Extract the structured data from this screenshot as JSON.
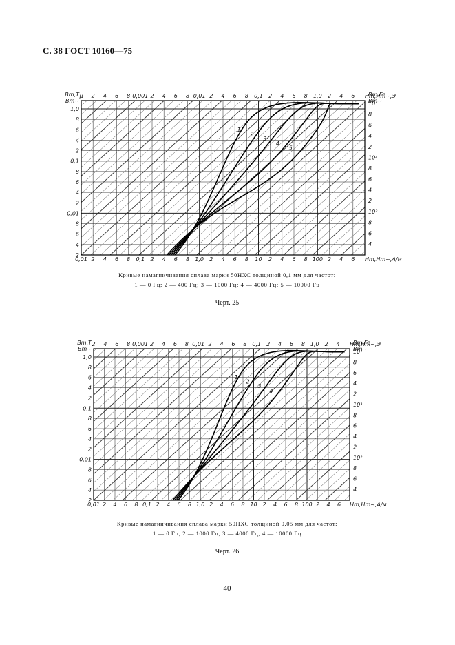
{
  "header": "С. 38 ГОСТ 10160—75",
  "figures": [
    {
      "top_axis": [
        "μ",
        "2",
        "4",
        "6",
        "8",
        "0,001",
        "2",
        "4",
        "6",
        "8",
        "0,01",
        "2",
        "4",
        "6",
        "8",
        "0,1",
        "2",
        "4",
        "6",
        "8",
        "1,0",
        "2",
        "4",
        "6",
        "Hm,Hm~,Э"
      ],
      "bottom_axis": [
        "0,01",
        "2",
        "4",
        "6",
        "8",
        "0,1",
        "2",
        "4",
        "6",
        "8",
        "1,0",
        "2",
        "4",
        "6",
        "8",
        "10",
        "2",
        "4",
        "6",
        "8",
        "100",
        "2",
        "4",
        "6",
        "Hm,Hm~,А/м"
      ],
      "left_axis": [
        "Bm,Т",
        "Bm~",
        "1,0",
        "8",
        "6",
        "4",
        "2",
        "0,1",
        "8",
        "6",
        "4",
        "2",
        "0,01",
        "8",
        "6",
        "4",
        "2"
      ],
      "right_axis": [
        "Bm,Гс",
        "Bm~",
        "10⁴",
        "8",
        "6",
        "4",
        "2",
        "10³",
        "8",
        "6",
        "4",
        "2",
        "10²",
        "8",
        "6",
        "4"
      ],
      "curve_labels": [
        "1",
        "2",
        "3",
        "4",
        "5"
      ],
      "caption": [
        "Кривые намагничивания сплава марки 50НХС толщиной 0,1 мм для частот:",
        "1 — 0 Гц; 2 — 400 Гц; 3 — 1000 Гц; 4 — 4000 Гц; 5 — 10000 Гц"
      ],
      "label": "Черт. 25"
    },
    {
      "top_axis": [
        "2",
        "4",
        "6",
        "8",
        "0,001",
        "2",
        "4",
        "6",
        "8",
        "0,01",
        "2",
        "4",
        "6",
        "8",
        "0,1",
        "2",
        "4",
        "6",
        "8",
        "1,0",
        "2",
        "4",
        "Hm,Hm~,Э"
      ],
      "bottom_axis": [
        "0,01",
        "2",
        "4",
        "6",
        "8",
        "0,1",
        "2",
        "4",
        "6",
        "8",
        "1,0",
        "2",
        "4",
        "6",
        "8",
        "10",
        "2",
        "4",
        "6",
        "8",
        "100",
        "2",
        "4",
        "6",
        "Hm,Hm~,А/м"
      ],
      "left_axis": [
        "Bm,Т",
        "Bm~",
        "1,0",
        "8",
        "6",
        "4",
        "2",
        "0,1",
        "8",
        "6",
        "4",
        "2",
        "0,01",
        "8",
        "6",
        "4",
        "2"
      ],
      "right_axis": [
        "Bm,Гс",
        "Bm~",
        "10⁴",
        "8",
        "6",
        "4",
        "2",
        "10³",
        "8",
        "6",
        "4",
        "2",
        "10²",
        "8",
        "6",
        "4"
      ],
      "curve_labels": [
        "1",
        "2",
        "3",
        "4"
      ],
      "caption": [
        "Кривые намагничивания сплава марки 50НХС толщиной 0,05 мм для частот:",
        "1 — 0 Гц; 2 — 1000 Гц; 3 — 4000 Гц; 4 — 10000 Гц"
      ],
      "label": "Черт. 26"
    }
  ],
  "page_number": "40"
}
